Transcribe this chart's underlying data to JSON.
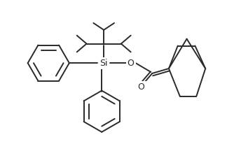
{
  "bg_color": "#ffffff",
  "line_color": "#2a2a2a",
  "line_width": 1.4,
  "si_label": "Si",
  "o_label": "O",
  "o2_label": "O",
  "si_fontsize": 9,
  "o_fontsize": 9
}
